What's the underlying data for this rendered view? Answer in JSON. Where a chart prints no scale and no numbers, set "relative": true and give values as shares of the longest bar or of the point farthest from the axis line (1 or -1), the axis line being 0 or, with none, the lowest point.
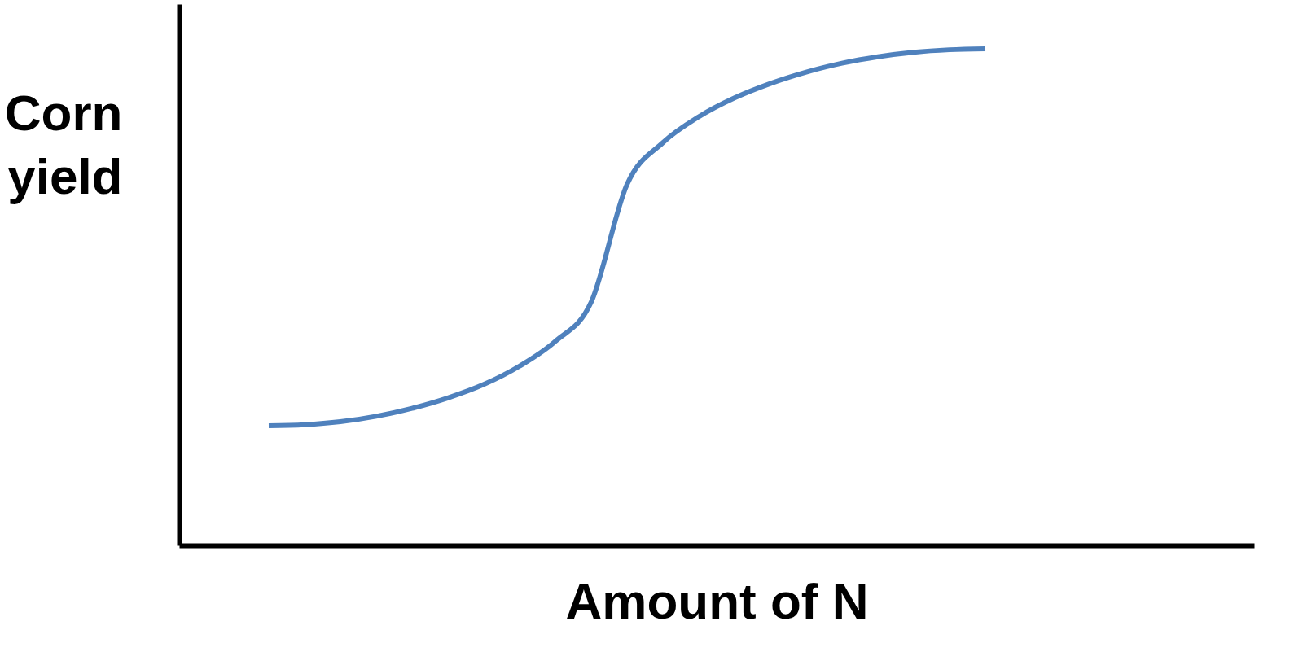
{
  "chart_data": {
    "type": "line",
    "relative": true,
    "xlabel": "Amount of N",
    "ylabel": "Corn yield",
    "categories": [
      null,
      null,
      null,
      null,
      null,
      null,
      null,
      null,
      null,
      null,
      null,
      null,
      null,
      null,
      null,
      null,
      null,
      null,
      null,
      null,
      null,
      null,
      null,
      null,
      null,
      null,
      null,
      null,
      null,
      null
    ],
    "series": [
      {
        "color": "#4f81bd",
        "values": [
          null,
          null,
          0.241,
          0.243,
          0.249,
          0.26,
          0.276,
          0.297,
          0.324,
          0.361,
          0.411,
          0.49,
          0.727,
          0.811,
          0.863,
          0.901,
          0.93,
          0.953,
          0.971,
          0.984,
          0.993,
          0.998,
          1.0,
          null,
          null,
          null,
          null,
          null,
          null,
          null
        ]
      }
    ],
    "grid": false,
    "tick_labels": false,
    "marker": "none",
    "line_style": "solid"
  }
}
